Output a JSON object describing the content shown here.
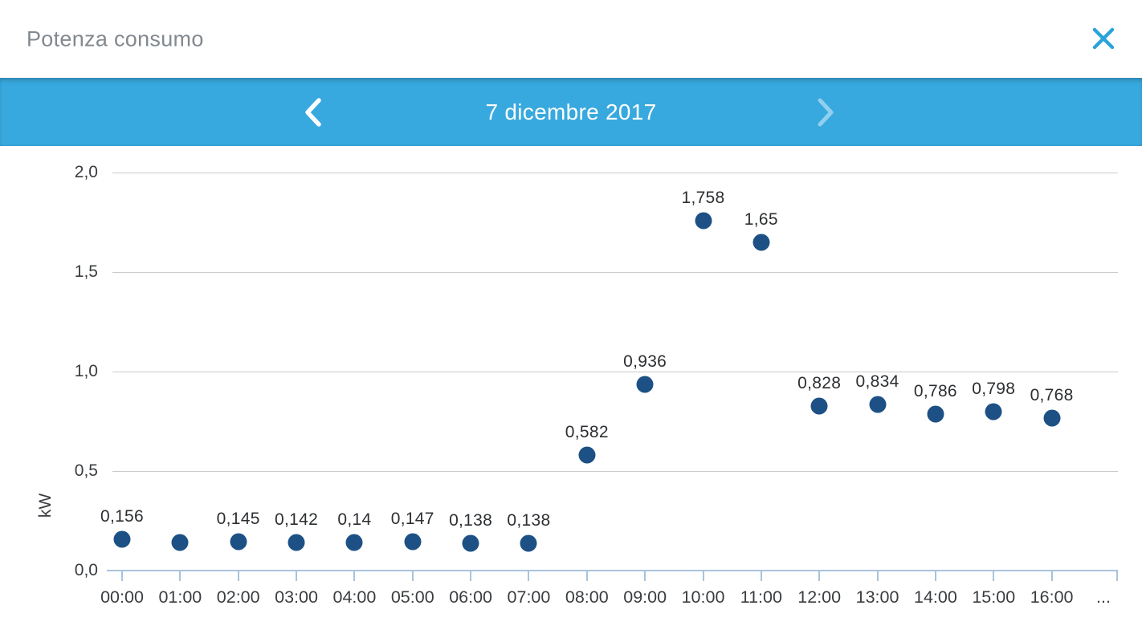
{
  "window": {
    "title": "Potenza consumo"
  },
  "date_nav": {
    "prev_icon": "chevron-left",
    "date_label": "7 dicembre 2017",
    "next_icon": "chevron-right"
  },
  "colors": {
    "accent_blue": "#38a9de",
    "point_blue": "#1d5185",
    "grid_gray": "#cbcbcb",
    "axis_blue": "#a9c3dd",
    "title_gray": "#82898f",
    "close_blue": "#2aa3dc"
  },
  "chart_data": {
    "type": "scatter",
    "title": "Potenza consumo",
    "xlabel": "",
    "ylabel": "kW",
    "ylim": [
      0,
      2
    ],
    "grid": true,
    "y_ticks": [
      {
        "label": "2,0",
        "value": 2.0
      },
      {
        "label": "1,5",
        "value": 1.5
      },
      {
        "label": "1,0",
        "value": 1.0
      },
      {
        "label": "0,5",
        "value": 0.5
      },
      {
        "label": "0,0",
        "value": 0.0
      }
    ],
    "x_ticks": [
      "00:00",
      "01:00",
      "02:00",
      "03:00",
      "04:00",
      "05:00",
      "06:00",
      "07:00",
      "08:00",
      "09:00",
      "10:00",
      "11:00",
      "12:00",
      "13:00",
      "14:00",
      "15:00",
      "16:00"
    ],
    "overflow_label": "...",
    "points": [
      {
        "time": "00:00",
        "value": 0.156,
        "label": "0,156"
      },
      {
        "time": "01:00",
        "value": 0.14,
        "label": ""
      },
      {
        "time": "02:00",
        "value": 0.145,
        "label": "0,145"
      },
      {
        "time": "03:00",
        "value": 0.142,
        "label": "0,142"
      },
      {
        "time": "04:00",
        "value": 0.14,
        "label": "0,14"
      },
      {
        "time": "05:00",
        "value": 0.147,
        "label": "0,147"
      },
      {
        "time": "06:00",
        "value": 0.138,
        "label": "0,138"
      },
      {
        "time": "07:00",
        "value": 0.138,
        "label": "0,138"
      },
      {
        "time": "08:00",
        "value": 0.582,
        "label": "0,582"
      },
      {
        "time": "09:00",
        "value": 0.936,
        "label": "0,936"
      },
      {
        "time": "10:00",
        "value": 1.758,
        "label": "1,758"
      },
      {
        "time": "11:00",
        "value": 1.65,
        "label": "1,65"
      },
      {
        "time": "12:00",
        "value": 0.828,
        "label": "0,828"
      },
      {
        "time": "13:00",
        "value": 0.834,
        "label": "0,834"
      },
      {
        "time": "14:00",
        "value": 0.786,
        "label": "0,786"
      },
      {
        "time": "15:00",
        "value": 0.798,
        "label": "0,798"
      },
      {
        "time": "16:00",
        "value": 0.768,
        "label": "0,768"
      }
    ]
  }
}
